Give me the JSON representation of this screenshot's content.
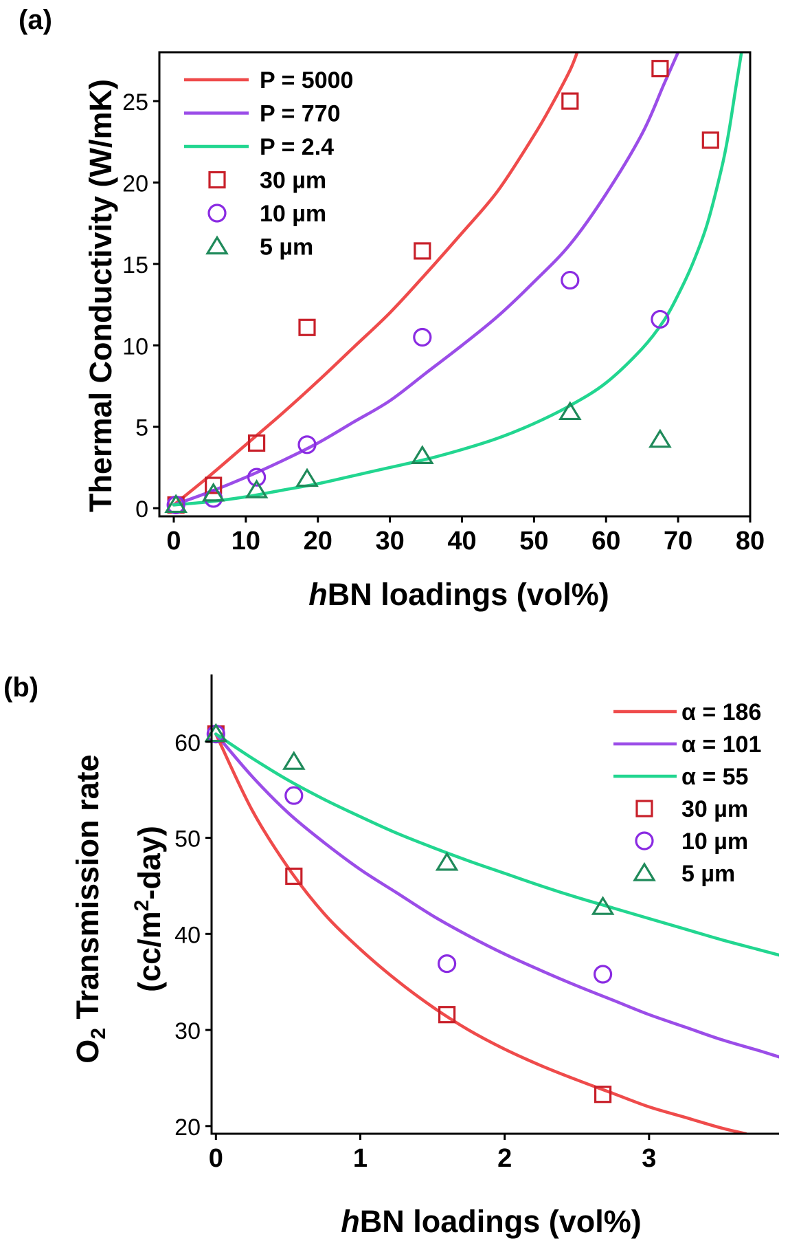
{
  "chart_data": [
    {
      "panel_label": "(a)",
      "type": "scatter",
      "xlabel_italic": "h",
      "xlabel_rest": "BN loadings (vol%)",
      "ylabel": "Thermal Conductivity (W/mK)",
      "xlim": [
        -2,
        80
      ],
      "ylim": [
        -0.5,
        28
      ],
      "xticks": [
        0,
        10,
        20,
        30,
        40,
        50,
        60,
        70,
        80
      ],
      "yticks": [
        0,
        5,
        10,
        15,
        20,
        25
      ],
      "legend_position": "top-left",
      "fit_lines": [
        {
          "name": "P = 5000",
          "color": "#ef4b4b",
          "x": [
            0,
            5,
            10,
            15,
            20,
            25,
            30,
            35,
            40,
            45,
            50,
            52.5,
            55,
            56
          ],
          "y": [
            0.2,
            2.0,
            3.9,
            5.8,
            7.8,
            9.9,
            12.0,
            14.4,
            16.9,
            19.5,
            22.9,
            24.8,
            26.9,
            28.0
          ]
        },
        {
          "name": "P = 770",
          "color": "#9b4de8",
          "x": [
            0,
            5,
            10,
            15,
            20,
            25,
            30,
            35,
            40,
            45,
            50,
            55,
            60,
            65,
            68,
            70
          ],
          "y": [
            0.2,
            1.0,
            1.9,
            2.9,
            4.0,
            5.3,
            6.6,
            8.3,
            10.0,
            11.8,
            13.9,
            16.2,
            19.3,
            23.0,
            26.0,
            28.0
          ]
        },
        {
          "name": "P = 2.4",
          "color": "#22d690",
          "x": [
            0,
            5,
            10,
            15,
            20,
            25,
            30,
            35,
            40,
            45,
            50,
            55,
            60,
            65,
            68,
            70,
            72,
            74,
            76,
            77,
            78,
            78.8
          ],
          "y": [
            0.2,
            0.4,
            0.7,
            1.1,
            1.5,
            2.0,
            2.5,
            3.0,
            3.6,
            4.3,
            5.2,
            6.3,
            7.7,
            9.8,
            11.5,
            13.1,
            15.0,
            17.4,
            20.8,
            23.0,
            25.8,
            28.0
          ]
        }
      ],
      "scatter_series": [
        {
          "name": "30 µm",
          "marker": "square",
          "color": "#c8202a",
          "x": [
            0.3,
            5.5,
            11.5,
            18.5,
            34.5,
            55,
            67.5,
            74.5
          ],
          "y": [
            0.2,
            1.4,
            4.0,
            11.1,
            15.8,
            25.0,
            27.0,
            22.6
          ]
        },
        {
          "name": "10 µm",
          "marker": "circle",
          "color": "#8a2be2",
          "x": [
            0.3,
            5.5,
            11.5,
            18.5,
            34.5,
            55,
            67.5
          ],
          "y": [
            0.2,
            0.6,
            1.9,
            3.9,
            10.5,
            14.0,
            11.6
          ]
        },
        {
          "name": "5 µm",
          "marker": "triangle",
          "color": "#1f8a5a",
          "x": [
            0.3,
            5.5,
            11.5,
            18.5,
            34.5,
            55,
            67.5
          ],
          "y": [
            0.2,
            0.9,
            1.1,
            1.8,
            3.2,
            5.9,
            4.2
          ]
        }
      ]
    },
    {
      "panel_label": "(b)",
      "type": "scatter",
      "xlabel_italic": "h",
      "xlabel_rest": "BN loadings (vol%)",
      "ylabel_line1_pre": "O",
      "ylabel_line1_sub": "2",
      "ylabel_line1_post": " Transmission rate",
      "ylabel_line2_pre": "(cc/m",
      "ylabel_line2_sup": "2",
      "ylabel_line2_post": "-day)",
      "xlim": [
        -0.03,
        3.9
      ],
      "ylim": [
        19.2,
        67
      ],
      "xticks": [
        0,
        1,
        2,
        3
      ],
      "yticks": [
        20,
        30,
        40,
        50,
        60
      ],
      "legend_position": "top-right",
      "fit_lines": [
        {
          "name": "α = 186",
          "color": "#ef4b4b",
          "x": [
            0,
            0.25,
            0.5,
            0.75,
            1.0,
            1.25,
            1.5,
            1.75,
            2.0,
            2.25,
            2.5,
            2.75,
            3.0,
            3.25,
            3.5,
            3.67
          ],
          "y": [
            60.8,
            52.9,
            46.9,
            42.1,
            38.4,
            35.2,
            32.4,
            30.0,
            28.0,
            26.3,
            24.8,
            23.4,
            22.0,
            20.9,
            19.8,
            19.2
          ]
        },
        {
          "name": "α = 101",
          "color": "#9b4de8",
          "x": [
            0,
            0.25,
            0.5,
            0.75,
            1.0,
            1.25,
            1.5,
            1.75,
            2.0,
            2.25,
            2.5,
            2.75,
            3.0,
            3.25,
            3.5,
            3.75,
            3.9
          ],
          "y": [
            60.8,
            56.4,
            52.6,
            49.5,
            46.7,
            44.3,
            41.9,
            39.8,
            37.9,
            36.2,
            34.6,
            33.1,
            31.6,
            30.3,
            29.0,
            27.9,
            27.2
          ]
        },
        {
          "name": "α =  55",
          "color": "#22d690",
          "x": [
            0,
            0.25,
            0.5,
            0.75,
            1.0,
            1.25,
            1.5,
            1.75,
            2.0,
            2.25,
            2.5,
            2.75,
            3.0,
            3.25,
            3.5,
            3.75,
            3.9
          ],
          "y": [
            60.8,
            58.3,
            56.0,
            54.0,
            52.2,
            50.5,
            49.0,
            47.6,
            46.3,
            45.0,
            43.8,
            42.7,
            41.6,
            40.5,
            39.4,
            38.4,
            37.8
          ]
        }
      ],
      "scatter_series": [
        {
          "name": "30 µm",
          "marker": "square",
          "color": "#c8202a",
          "x": [
            0,
            0.54,
            1.6,
            2.68
          ],
          "y": [
            60.8,
            46.0,
            31.6,
            23.3
          ]
        },
        {
          "name": "10 µm",
          "marker": "circle",
          "color": "#8a2be2",
          "x": [
            0,
            0.54,
            1.6,
            2.68
          ],
          "y": [
            60.8,
            54.4,
            36.9,
            35.8
          ]
        },
        {
          "name": "5 µm",
          "marker": "triangle",
          "color": "#1f8a5a",
          "x": [
            0,
            0.54,
            1.6,
            2.68
          ],
          "y": [
            60.8,
            57.9,
            47.4,
            42.8
          ]
        }
      ]
    }
  ]
}
